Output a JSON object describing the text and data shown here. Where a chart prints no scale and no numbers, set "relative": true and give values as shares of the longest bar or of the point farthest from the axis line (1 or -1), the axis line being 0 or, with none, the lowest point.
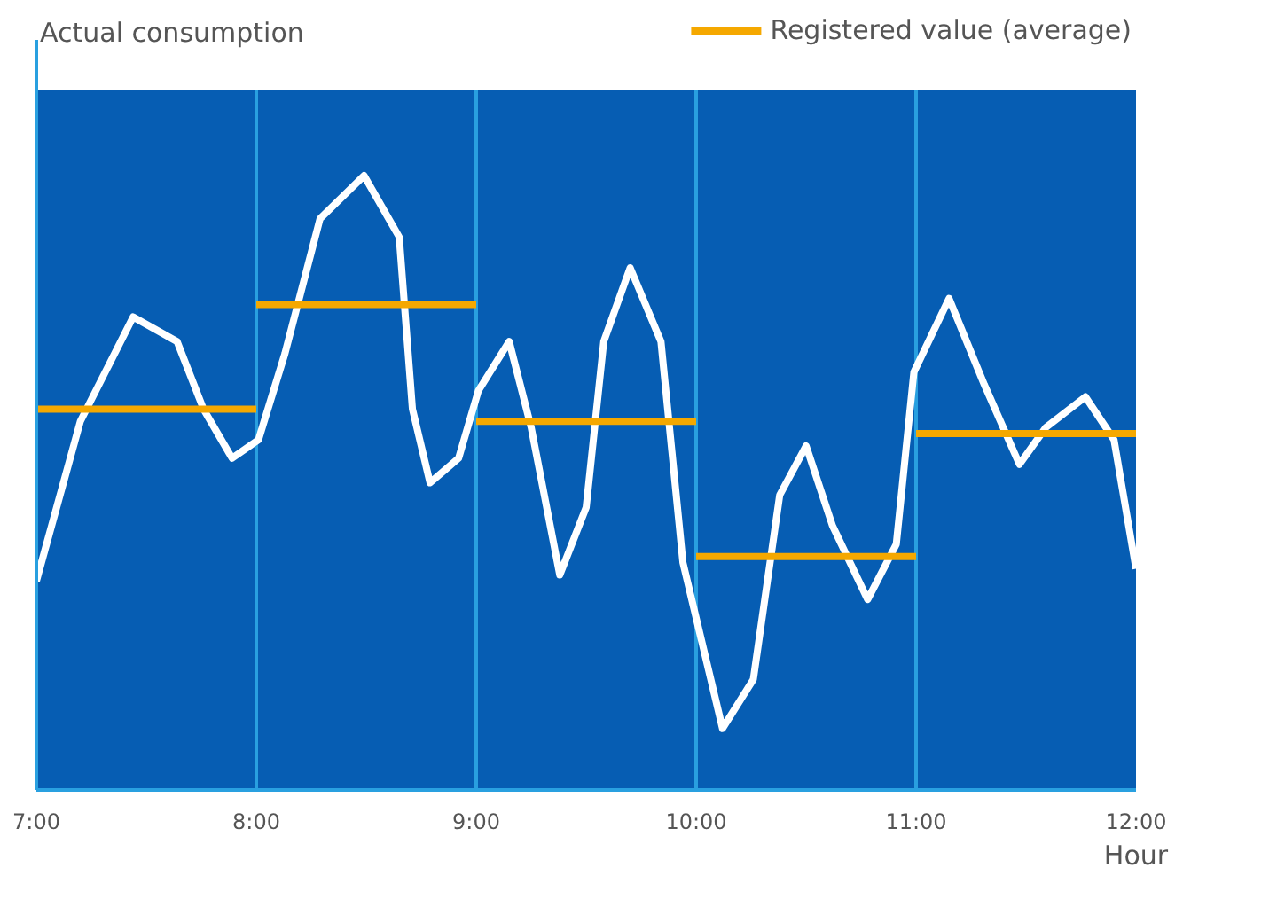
{
  "chart_data": {
    "type": "line",
    "relative": true,
    "ylabel": "Actual consumption",
    "xlabel": "Hour",
    "xlim": [
      7,
      12
    ],
    "xticks": [
      {
        "value": 7,
        "label": "7:00"
      },
      {
        "value": 8,
        "label": "8:00"
      },
      {
        "value": 9,
        "label": "9:00"
      },
      {
        "value": 10,
        "label": "10:00"
      },
      {
        "value": 11,
        "label": "11:00"
      },
      {
        "value": 12,
        "label": "12:00"
      }
    ],
    "grid": "x",
    "legend": "top right",
    "series": [
      {
        "color": "#ffffff",
        "x": [
          7.0,
          7.2,
          7.44,
          7.64,
          7.76,
          7.89,
          8.01,
          8.13,
          8.29,
          8.49,
          8.65,
          8.71,
          8.79,
          8.92,
          9.01,
          9.15,
          9.25,
          9.38,
          9.5,
          9.58,
          9.7,
          9.84,
          9.94,
          10.12,
          10.26,
          10.38,
          10.5,
          10.62,
          10.78,
          10.91,
          10.99,
          11.15,
          11.31,
          11.47,
          11.59,
          11.77,
          11.9,
          12.0
        ],
        "values": [
          0.34,
          0.6,
          0.77,
          0.73,
          0.62,
          0.54,
          0.57,
          0.71,
          0.93,
          1.0,
          0.9,
          0.62,
          0.5,
          0.54,
          0.65,
          0.73,
          0.59,
          0.35,
          0.46,
          0.73,
          0.85,
          0.73,
          0.37,
          0.1,
          0.18,
          0.48,
          0.56,
          0.43,
          0.31,
          0.4,
          0.68,
          0.8,
          0.66,
          0.53,
          0.59,
          0.64,
          0.57,
          0.36
        ]
      },
      {
        "name": "Registered value (average)",
        "color": "#f5a800",
        "x": [
          7,
          8
        ],
        "values": [
          0.62,
          0.62
        ]
      },
      {
        "color": "#f5a800",
        "x": [
          8,
          9
        ],
        "values": [
          0.79,
          0.79
        ]
      },
      {
        "color": "#f5a800",
        "x": [
          9,
          10
        ],
        "values": [
          0.6,
          0.6
        ]
      },
      {
        "color": "#f5a800",
        "x": [
          10,
          11
        ],
        "values": [
          0.38,
          0.38
        ]
      },
      {
        "color": "#f5a800",
        "x": [
          11,
          12
        ],
        "values": [
          0.58,
          0.58
        ]
      }
    ]
  }
}
